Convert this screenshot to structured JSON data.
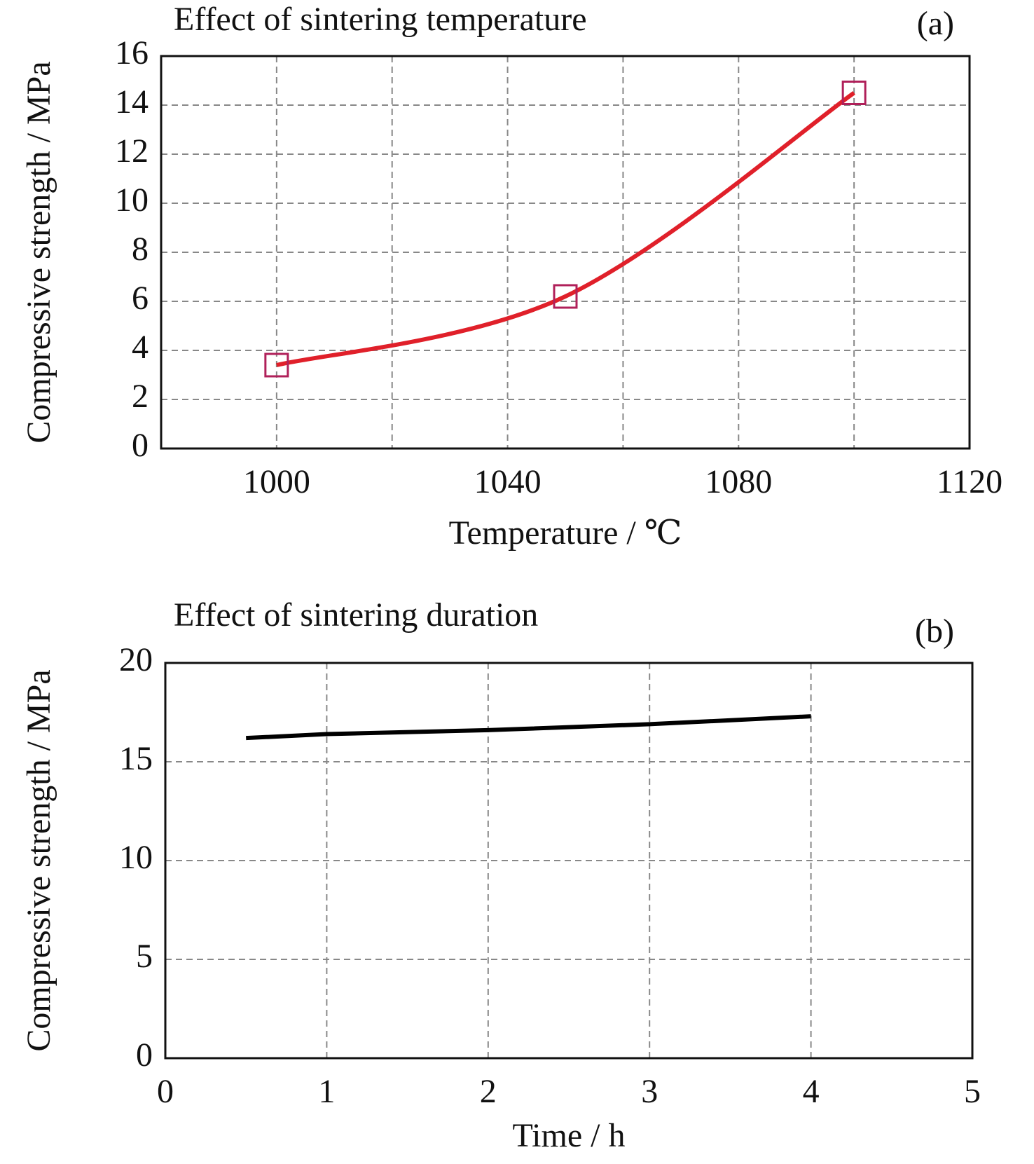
{
  "chart_data": [
    {
      "type": "line",
      "title": "Effect of sintering temperature",
      "panel_label": "(a)",
      "x_label": "Temperature / ℃",
      "y_label": "Compressive strength / MPa",
      "xlim": [
        980,
        1120
      ],
      "xticks": [
        1000,
        1040,
        1080,
        1120
      ],
      "xminor": [
        1020,
        1060,
        1100
      ],
      "ylim": [
        0,
        16
      ],
      "yticks": [
        0,
        2,
        4,
        6,
        8,
        10,
        12,
        14,
        16
      ],
      "grid": true,
      "smooth": true,
      "marker": "square",
      "series": [
        {
          "color": "#e0202a",
          "marker_color": "#b0205a",
          "x": [
            1000,
            1050,
            1100
          ],
          "values": [
            3.4,
            6.2,
            14.5
          ]
        }
      ]
    },
    {
      "type": "line",
      "title": "Effect of sintering duration",
      "panel_label": "(b)",
      "x_label": "Time / h",
      "y_label": "Compressive strength / MPa",
      "xlim": [
        0,
        5
      ],
      "xticks": [
        0,
        1,
        2,
        3,
        4,
        5
      ],
      "ylim": [
        0,
        20
      ],
      "yticks": [
        0,
        5,
        10,
        15,
        20
      ],
      "grid": true,
      "series": [
        {
          "color": "#000000",
          "x": [
            0.5,
            1,
            2,
            3,
            4
          ],
          "values": [
            16.2,
            16.4,
            16.6,
            16.9,
            17.3
          ]
        }
      ]
    }
  ]
}
